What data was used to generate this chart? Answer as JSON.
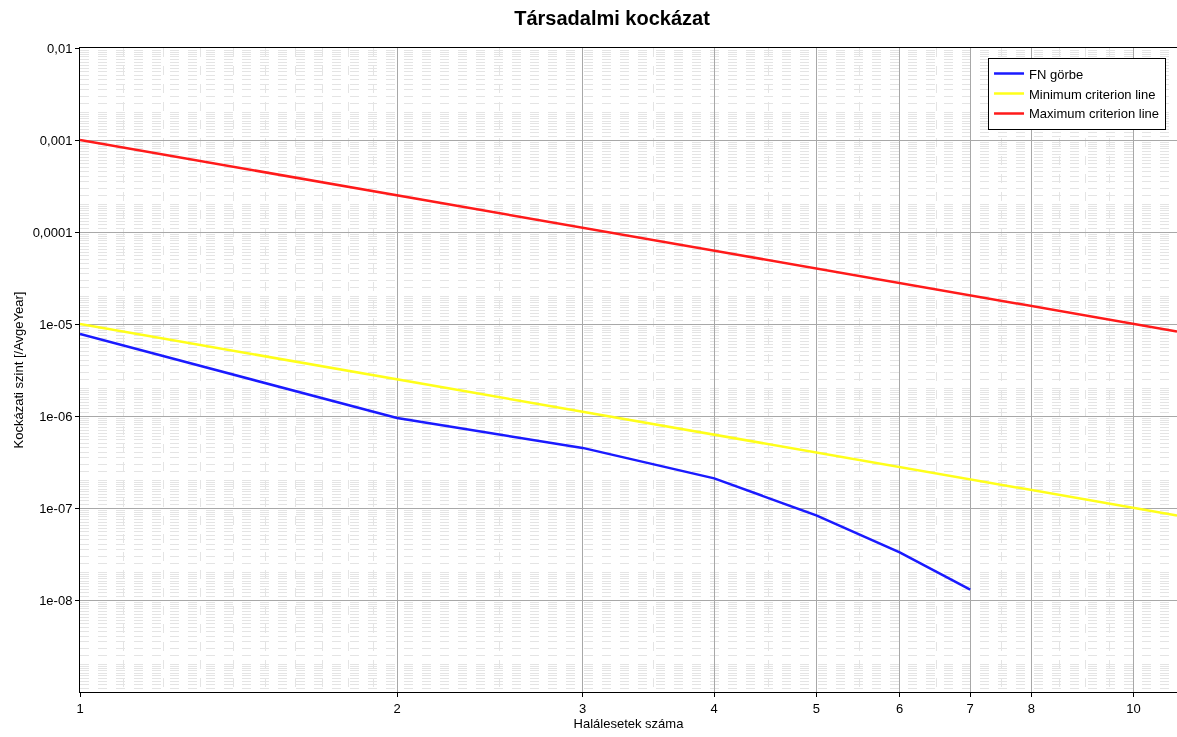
{
  "chart_data": {
    "type": "line",
    "title": "Társadalmi kockázat",
    "xlabel": "Halálesetek száma",
    "ylabel": "Kockázati szint [/AvgeYear]",
    "log": "xy",
    "grid": true,
    "legend": "top right",
    "marker": "none",
    "line_style": "solid",
    "xlim": [
      1,
      11
    ],
    "ylim": [
      1e-09,
      0.01
    ],
    "xticks": [
      1,
      2,
      3,
      4,
      5,
      6,
      7,
      8,
      10
    ],
    "yticks": [
      {
        "value": 0.01,
        "label": "0,01"
      },
      {
        "value": 0.001,
        "label": "0,001"
      },
      {
        "value": 0.0001,
        "label": "0,0001"
      },
      {
        "value": 1e-05,
        "label": "1e-05"
      },
      {
        "value": 1e-06,
        "label": "1e-06"
      },
      {
        "value": 1e-07,
        "label": "1e-07"
      },
      {
        "value": 1e-08,
        "label": "1e-08"
      }
    ],
    "series": [
      {
        "name": "FN görbe",
        "color": "#1a1aff",
        "x": [
          1,
          2,
          3,
          4,
          5,
          6,
          7
        ],
        "values": [
          7.8e-06,
          9.5e-07,
          4.5e-07,
          2.1e-07,
          8.3e-08,
          3.3e-08,
          1.3e-08
        ]
      },
      {
        "name": "Minimum criterion line",
        "color": "#ffff1a",
        "x": [
          1,
          11
        ],
        "values": [
          1e-05,
          8.3e-08
        ]
      },
      {
        "name": "Maximum criterion line",
        "color": "#ff1a1a",
        "x": [
          1,
          11
        ],
        "values": [
          0.001,
          8.3e-06
        ]
      }
    ]
  }
}
